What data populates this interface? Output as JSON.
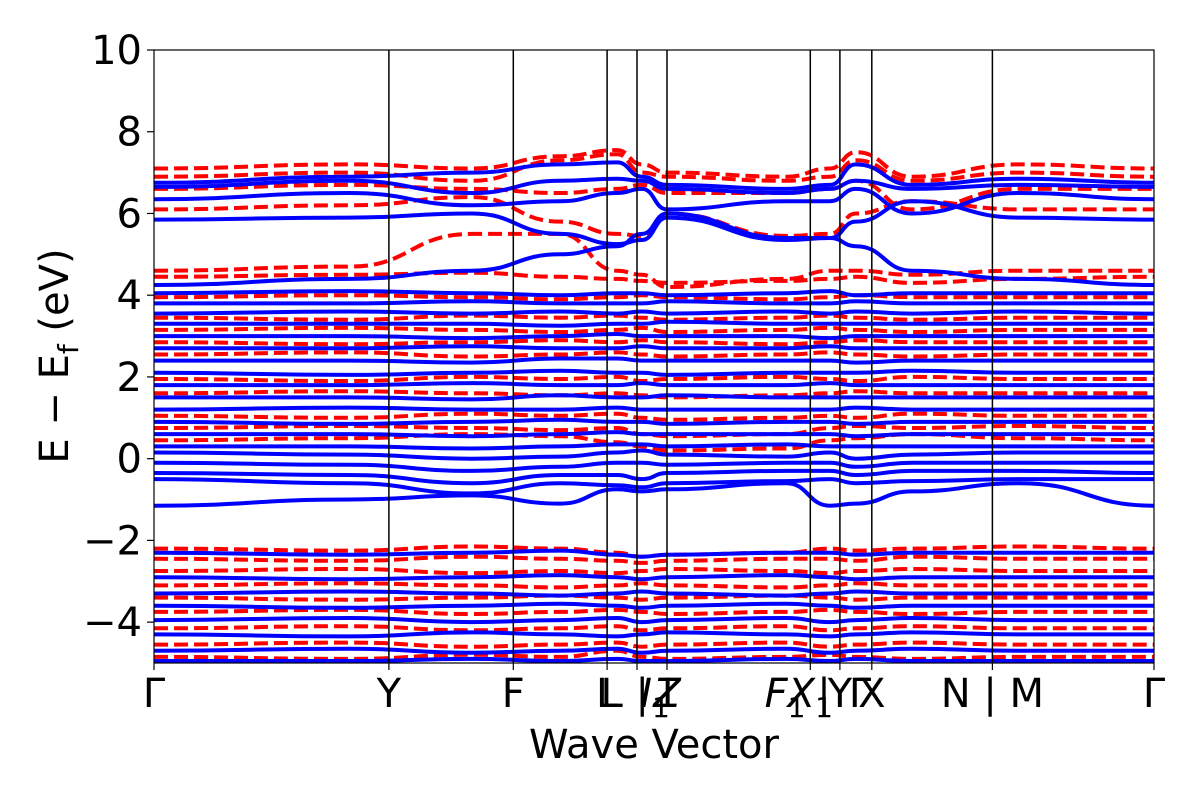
{
  "chart_data": {
    "type": "line",
    "title": "",
    "xlabel": "Wave Vector",
    "ylabel_main": "E − E",
    "ylabel_sub": "f",
    "ylabel_unit": " (eV)",
    "ylim": [
      -5,
      10
    ],
    "yticks": [
      -4,
      -2,
      0,
      2,
      4,
      6,
      8,
      10
    ],
    "ytick_labels": [
      "−4",
      "−2",
      "0",
      "2",
      "4",
      "6",
      "8",
      "10"
    ],
    "xlim": [
      0,
      1
    ],
    "kpoints": [
      {
        "x": 0.0,
        "label": "Γ"
      },
      {
        "x": 0.2349,
        "label": "Y"
      },
      {
        "x": 0.3593,
        "label": "F"
      },
      {
        "x": 0.4531,
        "label": "L"
      },
      {
        "x": 0.483,
        "label": "L | I"
      },
      {
        "x": 0.513,
        "label": "Z"
      },
      {
        "x": 0.6563,
        "label": "F | X"
      },
      {
        "x": 0.6859,
        "label": "Y | Γ"
      },
      {
        "x": 0.7178,
        "label": "X"
      },
      {
        "x": 0.8384,
        "label": "N | M"
      },
      {
        "x": 1.0,
        "label": "Γ"
      }
    ],
    "tick_texts": [
      {
        "text": "Γ",
        "x": 0.0,
        "italic": false,
        "sub": ""
      },
      {
        "text": "Y",
        "x": 0.2349,
        "italic": false,
        "sub": ""
      },
      {
        "text": "F",
        "x": 0.3593,
        "italic": false,
        "sub": ""
      },
      {
        "text": "L",
        "x": 0.4531,
        "italic": false,
        "sub": ""
      },
      {
        "text": "L | I",
        "x": 0.483,
        "italic": false,
        "sub": ""
      },
      {
        "text": "I",
        "x": 0.501,
        "italic": true,
        "sub": "1"
      },
      {
        "text": "Z",
        "x": 0.513,
        "italic": true,
        "sub": ""
      },
      {
        "text": "F",
        "x": 0.631,
        "italic": true,
        "sub": "1"
      },
      {
        "text": "X",
        "x": 0.6563,
        "italic": true,
        "sub": "1"
      },
      {
        "text": "|",
        "x": 0.67,
        "italic": false,
        "sub": ""
      },
      {
        "text": "Y",
        "x": 0.6859,
        "italic": false,
        "sub": ""
      },
      {
        "text": "Γ",
        "x": 0.706,
        "italic": false,
        "sub": ""
      },
      {
        "text": "X",
        "x": 0.7178,
        "italic": false,
        "sub": ""
      },
      {
        "text": "N | M",
        "x": 0.8384,
        "italic": false,
        "sub": ""
      },
      {
        "text": "Γ",
        "x": 1.0,
        "italic": false,
        "sub": ""
      }
    ],
    "series": [
      {
        "name": "",
        "color": "#0000ff",
        "style": "solid"
      },
      {
        "name": "",
        "color": "#ff0000",
        "style": "dashed"
      }
    ],
    "bands": {
      "solid": [
        [
          -1.15,
          -1.0,
          -0.9,
          -1.1,
          -0.75,
          -0.8,
          -0.75,
          -0.6,
          -1.15,
          -1.1,
          -0.8,
          -0.6,
          -1.15
        ],
        [
          -0.5,
          -0.6,
          -0.85,
          -0.6,
          -0.65,
          -0.7,
          -0.6,
          -0.55,
          -0.5,
          -0.6,
          -0.55,
          -0.5,
          -0.5
        ],
        [
          -0.35,
          -0.4,
          -0.6,
          -0.4,
          -0.4,
          -0.5,
          -0.35,
          -0.3,
          -0.3,
          -0.4,
          -0.3,
          -0.3,
          -0.35
        ],
        [
          -0.1,
          -0.15,
          -0.3,
          -0.2,
          -0.1,
          -0.1,
          -0.15,
          -0.1,
          -0.1,
          -0.2,
          -0.1,
          -0.1,
          -0.1
        ],
        [
          0.15,
          0.1,
          0.0,
          0.05,
          0.15,
          0.2,
          0.1,
          0.05,
          0.15,
          0.0,
          0.1,
          0.15,
          0.15
        ],
        [
          0.3,
          0.3,
          0.25,
          0.3,
          0.35,
          0.35,
          0.3,
          0.35,
          0.3,
          0.3,
          0.3,
          0.3,
          0.3
        ],
        [
          0.6,
          0.6,
          0.55,
          0.6,
          0.65,
          0.6,
          0.6,
          0.6,
          0.6,
          0.55,
          0.6,
          0.6,
          0.6
        ],
        [
          0.9,
          0.85,
          0.9,
          0.95,
          0.9,
          0.9,
          0.85,
          0.9,
          0.9,
          0.85,
          0.9,
          0.9,
          0.9
        ],
        [
          1.2,
          1.25,
          1.2,
          1.2,
          1.25,
          1.2,
          1.2,
          1.2,
          1.2,
          1.25,
          1.2,
          1.2,
          1.2
        ],
        [
          1.5,
          1.5,
          1.45,
          1.55,
          1.5,
          1.5,
          1.55,
          1.5,
          1.5,
          1.5,
          1.5,
          1.5,
          1.5
        ],
        [
          1.8,
          1.8,
          1.85,
          1.8,
          1.8,
          1.85,
          1.8,
          1.8,
          1.85,
          1.8,
          1.8,
          1.8,
          1.8
        ],
        [
          2.1,
          2.05,
          2.1,
          2.15,
          2.1,
          2.1,
          2.05,
          2.1,
          2.1,
          2.1,
          2.15,
          2.1,
          2.1
        ],
        [
          2.4,
          2.4,
          2.35,
          2.45,
          2.45,
          2.4,
          2.4,
          2.4,
          2.4,
          2.35,
          2.4,
          2.4,
          2.4
        ],
        [
          2.7,
          2.7,
          2.75,
          2.7,
          2.7,
          2.75,
          2.7,
          2.7,
          2.75,
          2.7,
          2.7,
          2.7,
          2.7
        ],
        [
          3.0,
          3.0,
          2.95,
          3.0,
          3.05,
          3.0,
          3.0,
          3.0,
          2.95,
          3.0,
          3.0,
          3.0,
          3.0
        ],
        [
          3.3,
          3.3,
          3.3,
          3.25,
          3.3,
          3.3,
          3.35,
          3.3,
          3.3,
          3.3,
          3.3,
          3.3,
          3.3
        ],
        [
          3.55,
          3.6,
          3.55,
          3.6,
          3.55,
          3.6,
          3.55,
          3.6,
          3.55,
          3.6,
          3.55,
          3.6,
          3.55
        ],
        [
          3.8,
          3.8,
          3.85,
          3.8,
          3.8,
          3.8,
          3.85,
          3.8,
          3.8,
          3.85,
          3.8,
          3.8,
          3.8
        ],
        [
          4.05,
          4.1,
          4.05,
          4.0,
          4.05,
          4.05,
          4.0,
          4.05,
          4.1,
          4.0,
          4.05,
          4.05,
          4.05
        ],
        [
          4.25,
          4.4,
          4.6,
          5.0,
          5.2,
          5.5,
          6.0,
          5.4,
          5.4,
          5.2,
          4.6,
          4.4,
          4.25
        ],
        [
          5.85,
          5.9,
          6.0,
          5.5,
          5.25,
          5.35,
          5.9,
          5.35,
          5.4,
          5.8,
          6.3,
          5.9,
          5.85
        ],
        [
          6.35,
          6.5,
          6.2,
          6.3,
          6.5,
          6.6,
          6.1,
          6.3,
          6.3,
          6.6,
          6.0,
          6.5,
          6.35
        ],
        [
          6.65,
          6.8,
          6.5,
          6.8,
          6.85,
          6.8,
          6.6,
          6.5,
          6.6,
          6.8,
          6.6,
          6.7,
          6.65
        ],
        [
          6.75,
          6.9,
          7.0,
          7.2,
          7.25,
          6.9,
          6.7,
          6.6,
          6.7,
          7.2,
          6.7,
          6.85,
          6.75
        ]
      ],
      "dashed": [
        [
          0.45,
          0.5,
          0.6,
          0.55,
          0.4,
          0.3,
          0.2,
          0.25,
          0.45,
          0.5,
          0.6,
          0.5,
          0.45
        ],
        [
          0.75,
          0.8,
          0.75,
          0.7,
          0.75,
          0.6,
          0.55,
          0.6,
          0.75,
          0.8,
          0.75,
          0.8,
          0.75
        ],
        [
          1.05,
          1.0,
          1.1,
          1.05,
          1.1,
          1.0,
          0.95,
          1.0,
          1.05,
          1.0,
          1.1,
          1.05,
          1.05
        ],
        [
          1.6,
          1.65,
          1.6,
          1.55,
          1.6,
          1.55,
          1.5,
          1.55,
          1.6,
          1.65,
          1.6,
          1.6,
          1.6
        ],
        [
          1.95,
          1.9,
          2.0,
          1.95,
          2.0,
          1.9,
          1.95,
          2.0,
          1.95,
          1.9,
          2.0,
          1.95,
          1.95
        ],
        [
          2.55,
          2.6,
          2.5,
          2.55,
          2.6,
          2.55,
          2.5,
          2.55,
          2.6,
          2.55,
          2.5,
          2.55,
          2.55
        ],
        [
          2.85,
          2.8,
          2.85,
          2.9,
          2.85,
          2.9,
          2.85,
          2.8,
          2.85,
          2.9,
          2.85,
          2.85,
          2.85
        ],
        [
          3.15,
          3.2,
          3.15,
          3.1,
          3.15,
          3.2,
          3.1,
          3.15,
          3.2,
          3.15,
          3.1,
          3.15,
          3.15
        ],
        [
          3.45,
          3.4,
          3.5,
          3.45,
          3.5,
          3.45,
          3.4,
          3.45,
          3.5,
          3.45,
          3.4,
          3.45,
          3.45
        ],
        [
          3.95,
          4.0,
          3.95,
          3.9,
          3.95,
          4.0,
          3.95,
          3.9,
          3.95,
          4.0,
          3.95,
          3.95,
          3.95
        ],
        [
          4.45,
          4.5,
          4.55,
          4.45,
          4.4,
          4.35,
          4.3,
          4.35,
          4.4,
          4.45,
          4.3,
          4.4,
          4.45
        ],
        [
          4.6,
          4.7,
          5.5,
          5.5,
          4.6,
          4.5,
          4.2,
          4.4,
          4.6,
          4.6,
          4.5,
          4.6,
          4.6
        ],
        [
          6.1,
          6.2,
          6.4,
          5.8,
          5.5,
          5.45,
          6.0,
          5.45,
          5.5,
          6.0,
          6.3,
          6.1,
          6.1
        ],
        [
          6.6,
          6.7,
          6.6,
          6.5,
          6.6,
          6.7,
          6.5,
          6.5,
          6.6,
          6.8,
          6.1,
          6.6,
          6.6
        ],
        [
          6.9,
          7.0,
          6.8,
          7.3,
          7.45,
          7.0,
          6.9,
          6.8,
          6.9,
          7.3,
          6.8,
          7.0,
          6.9
        ],
        [
          7.1,
          7.2,
          7.1,
          7.4,
          7.55,
          7.2,
          7.0,
          6.9,
          7.1,
          7.5,
          6.9,
          7.2,
          7.1
        ],
        [
          -2.2,
          -2.25,
          -2.15,
          -2.2,
          -2.3,
          -2.4,
          -2.35,
          -2.3,
          -2.2,
          -2.25,
          -2.2,
          -2.15,
          -2.2
        ],
        [
          -2.45,
          -2.5,
          -2.4,
          -2.45,
          -2.5,
          -2.55,
          -2.5,
          -2.45,
          -2.45,
          -2.5,
          -2.4,
          -2.45,
          -2.45
        ],
        [
          -2.75,
          -2.7,
          -2.8,
          -2.75,
          -2.8,
          -2.75,
          -2.7,
          -2.75,
          -2.8,
          -2.75,
          -2.7,
          -2.75,
          -2.75
        ],
        [
          -3.1,
          -3.05,
          -3.1,
          -3.15,
          -3.1,
          -3.05,
          -3.1,
          -3.15,
          -3.1,
          -3.05,
          -3.1,
          -3.1,
          -3.1
        ],
        [
          -3.4,
          -3.45,
          -3.4,
          -3.35,
          -3.4,
          -3.45,
          -3.4,
          -3.35,
          -3.4,
          -3.45,
          -3.4,
          -3.4,
          -3.4
        ],
        [
          -3.75,
          -3.7,
          -3.8,
          -3.75,
          -3.7,
          -3.75,
          -3.8,
          -3.75,
          -3.7,
          -3.75,
          -3.8,
          -3.75,
          -3.75
        ],
        [
          -4.15,
          -4.1,
          -4.2,
          -4.15,
          -4.1,
          -4.2,
          -4.15,
          -4.1,
          -4.2,
          -4.15,
          -4.1,
          -4.15,
          -4.15
        ],
        [
          -4.55,
          -4.5,
          -4.6,
          -4.55,
          -4.5,
          -4.6,
          -4.55,
          -4.5,
          -4.6,
          -4.55,
          -4.5,
          -4.55,
          -4.55
        ],
        [
          -4.85,
          -4.9,
          -4.8,
          -4.85,
          -4.7,
          -4.85,
          -4.9,
          -4.85,
          -4.8,
          -4.85,
          -4.9,
          -4.85,
          -4.85
        ]
      ],
      "solid_valence": [
        [
          -2.3,
          -2.35,
          -2.3,
          -2.25,
          -2.35,
          -2.4,
          -2.35,
          -2.3,
          -2.3,
          -2.35,
          -2.3,
          -2.3,
          -2.3
        ],
        [
          -2.9,
          -2.95,
          -2.9,
          -2.85,
          -2.9,
          -2.95,
          -2.9,
          -2.85,
          -2.9,
          -2.95,
          -2.9,
          -2.9,
          -2.9
        ],
        [
          -3.3,
          -3.25,
          -3.3,
          -3.35,
          -3.3,
          -3.25,
          -3.3,
          -3.35,
          -3.3,
          -3.25,
          -3.3,
          -3.3,
          -3.3
        ],
        [
          -3.6,
          -3.65,
          -3.6,
          -3.55,
          -3.6,
          -3.65,
          -3.6,
          -3.55,
          -3.6,
          -3.65,
          -3.6,
          -3.6,
          -3.6
        ],
        [
          -3.95,
          -3.9,
          -4.0,
          -3.95,
          -3.9,
          -4.0,
          -3.95,
          -3.9,
          -4.0,
          -3.95,
          -3.9,
          -3.95,
          -3.95
        ],
        [
          -4.3,
          -4.35,
          -4.25,
          -4.3,
          -4.35,
          -4.3,
          -4.25,
          -4.3,
          -4.35,
          -4.3,
          -4.25,
          -4.3,
          -4.3
        ],
        [
          -4.7,
          -4.65,
          -4.75,
          -4.7,
          -4.65,
          -4.75,
          -4.7,
          -4.65,
          -4.75,
          -4.7,
          -4.65,
          -4.7,
          -4.7
        ],
        [
          -4.95,
          -4.95,
          -4.9,
          -4.95,
          -4.9,
          -4.95,
          -4.95,
          -4.9,
          -4.95,
          -4.9,
          -4.95,
          -4.95,
          -4.95
        ]
      ]
    }
  }
}
